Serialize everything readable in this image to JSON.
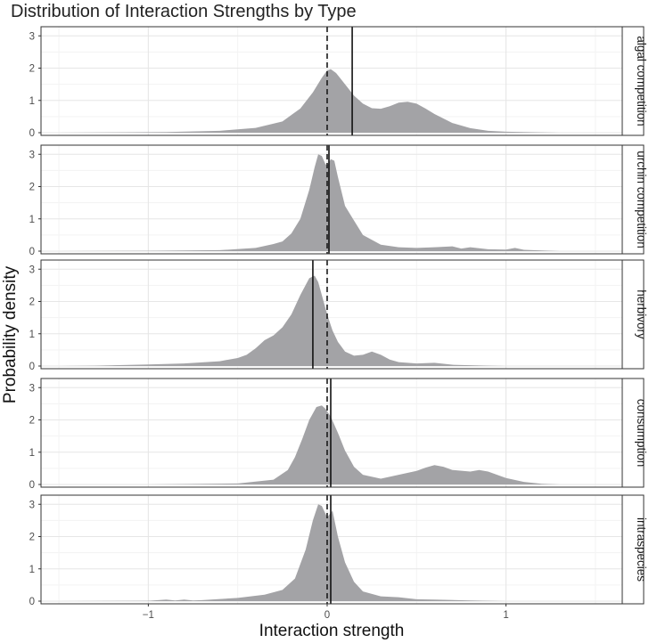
{
  "chart_data": {
    "type": "area",
    "title": "Distribution of Interaction Strengths by Type",
    "xlabel": "Interaction strength",
    "ylabel": "Probability density",
    "xlim": [
      -1.6,
      1.65
    ],
    "ylim": [
      0,
      3.2
    ],
    "x_ticks": [
      -1,
      0,
      1
    ],
    "x_tick_labels": [
      "−1",
      "0",
      "1"
    ],
    "y_ticks": [
      0,
      1,
      2,
      3
    ],
    "y_tick_labels": [
      "0",
      "1",
      "2",
      "3"
    ],
    "grid": true,
    "fill_color": "#a3a3a6",
    "reference_line_x": 0,
    "panels": [
      {
        "label": "algal competition",
        "mean": 0.14,
        "x": [
          -1.5,
          -1.2,
          -0.9,
          -0.6,
          -0.4,
          -0.25,
          -0.15,
          -0.08,
          -0.03,
          0.0,
          0.02,
          0.05,
          0.1,
          0.15,
          0.2,
          0.25,
          0.3,
          0.35,
          0.4,
          0.45,
          0.5,
          0.55,
          0.6,
          0.7,
          0.8,
          0.9,
          1.0,
          1.1,
          1.2,
          1.3,
          1.5
        ],
        "y": [
          0.0,
          0.01,
          0.02,
          0.06,
          0.15,
          0.35,
          0.75,
          1.25,
          1.7,
          1.93,
          1.97,
          1.85,
          1.5,
          1.15,
          0.9,
          0.76,
          0.74,
          0.82,
          0.93,
          0.96,
          0.9,
          0.75,
          0.58,
          0.3,
          0.14,
          0.06,
          0.03,
          0.02,
          0.01,
          0.0,
          0.0
        ]
      },
      {
        "label": "urchin competition",
        "mean": 0.01,
        "x": [
          -1.5,
          -1.0,
          -0.6,
          -0.4,
          -0.3,
          -0.25,
          -0.2,
          -0.15,
          -0.1,
          -0.07,
          -0.05,
          -0.03,
          -0.01,
          0.0,
          0.02,
          0.04,
          0.06,
          0.1,
          0.15,
          0.2,
          0.3,
          0.4,
          0.5,
          0.6,
          0.7,
          0.75,
          0.8,
          0.9,
          1.0,
          1.05,
          1.1,
          1.3,
          1.5
        ],
        "y": [
          0.0,
          0.01,
          0.03,
          0.1,
          0.22,
          0.3,
          0.55,
          1.0,
          1.9,
          2.6,
          3.0,
          2.95,
          2.7,
          2.65,
          2.85,
          2.8,
          2.3,
          1.4,
          0.95,
          0.5,
          0.2,
          0.12,
          0.1,
          0.12,
          0.15,
          0.08,
          0.12,
          0.06,
          0.05,
          0.1,
          0.04,
          0.0,
          0.0
        ]
      },
      {
        "label": "herbivory",
        "mean": -0.08,
        "x": [
          -1.5,
          -1.3,
          -1.0,
          -0.8,
          -0.6,
          -0.5,
          -0.45,
          -0.4,
          -0.35,
          -0.3,
          -0.25,
          -0.2,
          -0.15,
          -0.1,
          -0.07,
          -0.05,
          -0.03,
          0.0,
          0.03,
          0.06,
          0.1,
          0.15,
          0.2,
          0.25,
          0.3,
          0.35,
          0.4,
          0.5,
          0.6,
          0.7,
          0.9,
          1.0,
          1.2,
          1.5
        ],
        "y": [
          0.0,
          0.01,
          0.05,
          0.08,
          0.15,
          0.25,
          0.35,
          0.55,
          0.8,
          0.95,
          1.2,
          1.6,
          2.2,
          2.72,
          2.8,
          2.6,
          2.2,
          1.6,
          1.1,
          0.75,
          0.45,
          0.32,
          0.35,
          0.45,
          0.35,
          0.2,
          0.12,
          0.08,
          0.1,
          0.04,
          0.01,
          0.0,
          0.0,
          0.0
        ]
      },
      {
        "label": "consumption",
        "mean": 0.02,
        "x": [
          -1.0,
          -0.5,
          -0.3,
          -0.22,
          -0.18,
          -0.14,
          -0.1,
          -0.06,
          -0.03,
          -0.01,
          0.02,
          0.06,
          0.1,
          0.15,
          0.2,
          0.3,
          0.4,
          0.5,
          0.55,
          0.6,
          0.65,
          0.7,
          0.8,
          0.85,
          0.9,
          1.0,
          1.1,
          1.2,
          1.3
        ],
        "y": [
          0.0,
          0.03,
          0.15,
          0.45,
          0.85,
          1.4,
          2.0,
          2.4,
          2.45,
          2.35,
          2.1,
          1.6,
          1.05,
          0.55,
          0.3,
          0.18,
          0.3,
          0.42,
          0.52,
          0.6,
          0.55,
          0.45,
          0.4,
          0.45,
          0.4,
          0.2,
          0.08,
          0.02,
          0.0
        ]
      },
      {
        "label": "intraspecies",
        "mean": 0.02,
        "x": [
          -1.5,
          -1.0,
          -0.9,
          -0.85,
          -0.8,
          -0.75,
          -0.7,
          -0.5,
          -0.35,
          -0.25,
          -0.18,
          -0.12,
          -0.08,
          -0.05,
          -0.03,
          0.0,
          0.03,
          0.06,
          0.1,
          0.15,
          0.2,
          0.3,
          0.4,
          0.5,
          0.6,
          0.8,
          1.0
        ],
        "y": [
          0.0,
          0.01,
          0.05,
          0.02,
          0.05,
          0.02,
          0.03,
          0.1,
          0.2,
          0.35,
          0.7,
          1.6,
          2.5,
          3.0,
          2.95,
          2.6,
          2.8,
          2.0,
          1.2,
          0.6,
          0.3,
          0.15,
          0.12,
          0.06,
          0.05,
          0.02,
          0.0
        ]
      }
    ]
  }
}
